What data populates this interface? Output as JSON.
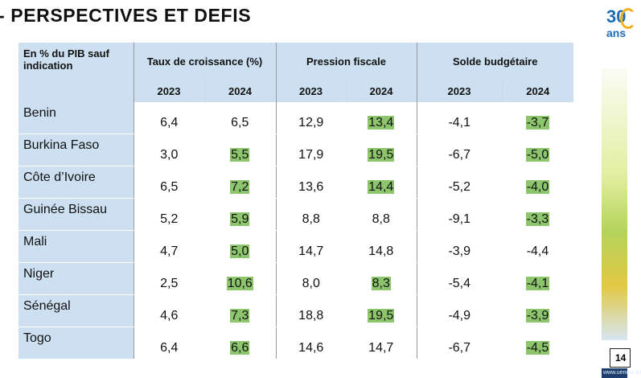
{
  "title": "- PERSPECTIVES ET DEFIS",
  "table": {
    "corner_label": "En % du PIB sauf indication",
    "groups": [
      "Taux de croissance (%)",
      "Pression fiscale",
      "Solde budgétaire"
    ],
    "years": [
      "2023",
      "2024",
      "2023",
      "2024",
      "2023",
      "2024"
    ],
    "rows": [
      {
        "country": "Benin",
        "values": [
          "6,4",
          "6,5",
          "12,9",
          "13,4",
          "-4,1",
          "-3,7"
        ]
      },
      {
        "country": "Burkina Faso",
        "values": [
          "3,0",
          "5,5",
          "17,9",
          "19,5",
          "-6,7",
          "-5,0"
        ]
      },
      {
        "country": "Côte d’Ivoire",
        "values": [
          "6,5",
          "7,2",
          "13,6",
          "14,4",
          "-5,2",
          "-4,0"
        ]
      },
      {
        "country": "Guinée Bissau",
        "values": [
          "5,2",
          "5,9",
          "8,8",
          "8,8",
          "-9,1",
          "-3,3"
        ]
      },
      {
        "country": "Mali",
        "values": [
          "4,7",
          "5,0",
          "14,7",
          "14,8",
          "-3,9",
          "-4,4"
        ]
      },
      {
        "country": "Niger",
        "values": [
          "2,5",
          "10,6",
          "8,0",
          "8,3",
          "-5,4",
          "-4,1"
        ]
      },
      {
        "country": "Sénégal",
        "values": [
          "4,6",
          "7,3",
          "18,8",
          "19,5",
          "-4,9",
          "-3,9"
        ]
      },
      {
        "country": "Togo",
        "values": [
          "6,4",
          "6,6",
          "14,6",
          "14,7",
          "-6,7",
          "-4,5"
        ]
      }
    ],
    "highlight_color": "#8cc56c",
    "header_color": "#cde0f1"
  },
  "logo": {
    "number": "30",
    "text": "ans"
  },
  "page_number": "14",
  "footer_url": "www.uemoa.int"
}
